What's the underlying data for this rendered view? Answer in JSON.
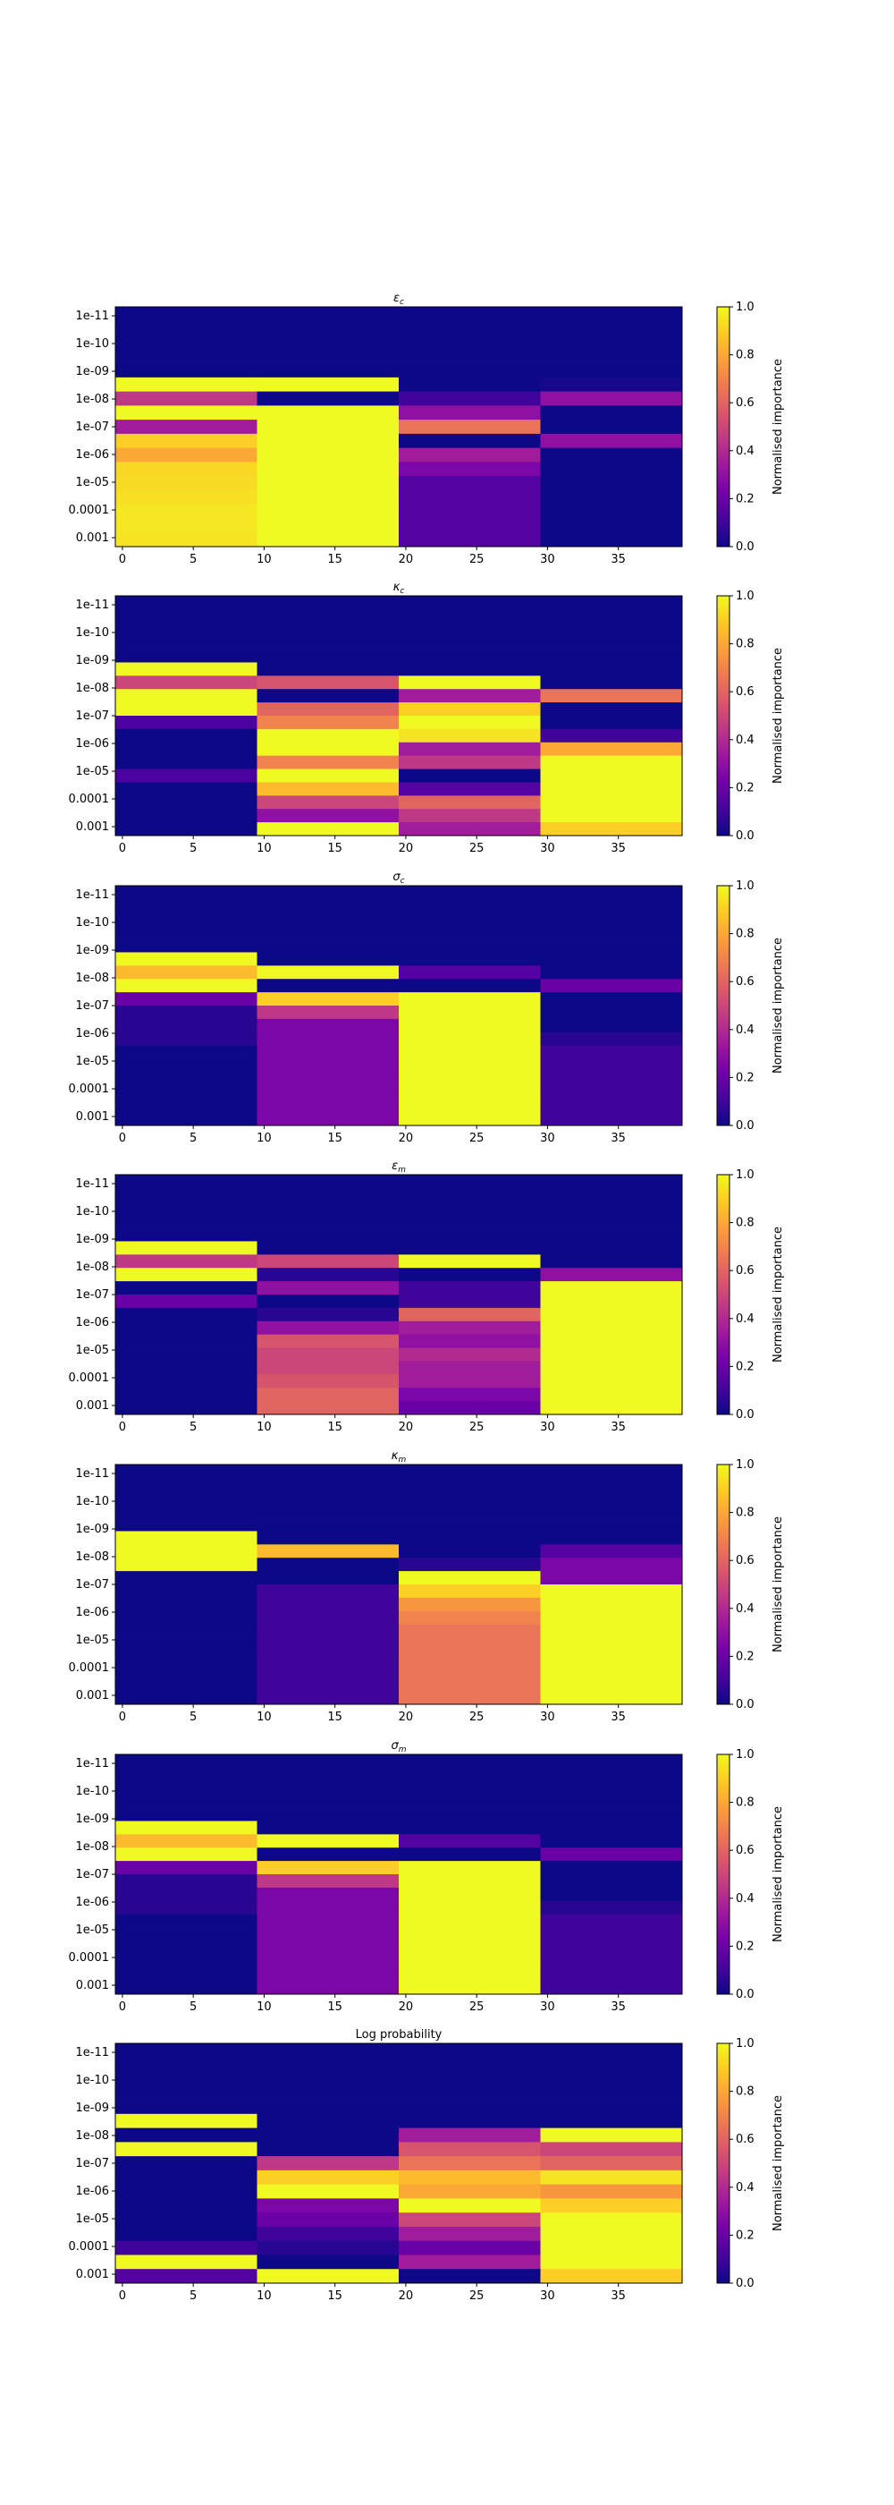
{
  "figure": {
    "colorscale": {
      "name": "plasma",
      "stops": [
        "#0d0887",
        "#46039f",
        "#7201a8",
        "#9c179e",
        "#bd3786",
        "#d8576b",
        "#ed7953",
        "#fb9f3a",
        "#fdca26",
        "#f0f921"
      ]
    },
    "colorbar_label": "Normalised importance",
    "colorbar_ticks": [
      "0.0",
      "0.2",
      "0.4",
      "0.6",
      "0.8",
      "1.0"
    ]
  },
  "chart_data": [
    {
      "type": "heatmap",
      "title": "εc",
      "title_main": "ε",
      "title_sub": "c",
      "x_ticks": [
        "0",
        "5",
        "10",
        "15",
        "20",
        "25",
        "30",
        "35"
      ],
      "xlim": [
        -0.5,
        39.5
      ],
      "y_tick_labels": [
        "1e-11",
        "1e-10",
        "1e-09",
        "1e-08",
        "1e-07",
        "1e-06",
        "1e-05",
        "0.0001",
        "0.001"
      ],
      "colorbar_range": [
        0,
        1
      ],
      "col_groups": [
        [
          0,
          9
        ],
        [
          10,
          19
        ],
        [
          20,
          29
        ],
        [
          30,
          39
        ]
      ],
      "values": [
        [
          0,
          0,
          0,
          0
        ],
        [
          0,
          0,
          0,
          0
        ],
        [
          0,
          0,
          0,
          0
        ],
        [
          0,
          0,
          0,
          0
        ],
        [
          0,
          0,
          0,
          0
        ],
        [
          1.0,
          1.0,
          0,
          0.02
        ],
        [
          0.45,
          0,
          0.1,
          0.3
        ],
        [
          1.0,
          1.0,
          0.3,
          0
        ],
        [
          0.35,
          1.0,
          0.65,
          0
        ],
        [
          0.9,
          1.0,
          0,
          0.3
        ],
        [
          0.8,
          1.0,
          0.35,
          0
        ],
        [
          0.92,
          1.0,
          0.25,
          0
        ],
        [
          0.93,
          1.0,
          0.15,
          0
        ],
        [
          0.94,
          1.0,
          0.15,
          0
        ],
        [
          0.96,
          1.0,
          0.15,
          0
        ],
        [
          0.96,
          1.0,
          0.15,
          0
        ],
        [
          0.95,
          1.0,
          0.15,
          0
        ]
      ]
    },
    {
      "type": "heatmap",
      "title": "κc",
      "title_main": "κ",
      "title_sub": "c",
      "x_ticks": [
        "0",
        "5",
        "10",
        "15",
        "20",
        "25",
        "30",
        "35"
      ],
      "xlim": [
        -0.5,
        39.5
      ],
      "y_tick_labels": [
        "1e-11",
        "1e-10",
        "1e-09",
        "1e-08",
        "1e-07",
        "1e-06",
        "1e-05",
        "0.0001",
        "0.001"
      ],
      "colorbar_range": [
        0,
        1
      ],
      "col_groups": [
        [
          0,
          9
        ],
        [
          10,
          19
        ],
        [
          20,
          29
        ],
        [
          30,
          39
        ]
      ],
      "values": [
        [
          0,
          0,
          0,
          0
        ],
        [
          0,
          0,
          0,
          0
        ],
        [
          0,
          0,
          0,
          0
        ],
        [
          0,
          0,
          0,
          0
        ],
        [
          0,
          0,
          0,
          0
        ],
        [
          1.0,
          0,
          0,
          0
        ],
        [
          0.5,
          0.55,
          1.0,
          0
        ],
        [
          1.0,
          0,
          0.35,
          0.65
        ],
        [
          1.0,
          0.6,
          0.9,
          0
        ],
        [
          0.12,
          0.7,
          1.0,
          0
        ],
        [
          0,
          1.0,
          0.95,
          0.1
        ],
        [
          0,
          1.0,
          0.35,
          0.8
        ],
        [
          0,
          0.7,
          0.45,
          1.0
        ],
        [
          0.12,
          1.0,
          0,
          1.0
        ],
        [
          0,
          0.85,
          0.15,
          1.0
        ],
        [
          0,
          0.5,
          0.6,
          1.0
        ],
        [
          0,
          0.3,
          0.45,
          1.0
        ],
        [
          0,
          1.0,
          0.35,
          0.9
        ]
      ]
    },
    {
      "type": "heatmap",
      "title": "σc",
      "title_main": "σ",
      "title_sub": "c",
      "x_ticks": [
        "0",
        "5",
        "10",
        "15",
        "20",
        "25",
        "30",
        "35"
      ],
      "xlim": [
        -0.5,
        39.5
      ],
      "y_tick_labels": [
        "1e-11",
        "1e-10",
        "1e-09",
        "1e-08",
        "1e-07",
        "1e-06",
        "1e-05",
        "0.0001",
        "0.001"
      ],
      "colorbar_range": [
        0,
        1
      ],
      "col_groups": [
        [
          0,
          9
        ],
        [
          10,
          19
        ],
        [
          20,
          29
        ],
        [
          30,
          39
        ]
      ],
      "values": [
        [
          0,
          0,
          0,
          0
        ],
        [
          0,
          0,
          0,
          0
        ],
        [
          0,
          0,
          0,
          0
        ],
        [
          0,
          0,
          0,
          0
        ],
        [
          0,
          0,
          0,
          0
        ],
        [
          1.0,
          0,
          0,
          0
        ],
        [
          0.85,
          1.0,
          0.15,
          0
        ],
        [
          1.0,
          0,
          0,
          0.2
        ],
        [
          0.2,
          0.9,
          1.0,
          0
        ],
        [
          0.05,
          0.45,
          1.0,
          0
        ],
        [
          0.05,
          0.25,
          1.0,
          0
        ],
        [
          0.05,
          0.25,
          1.0,
          0.05
        ],
        [
          0,
          0.25,
          1.0,
          0.1
        ],
        [
          0,
          0.25,
          1.0,
          0.1
        ],
        [
          0,
          0.25,
          1.0,
          0.1
        ],
        [
          0,
          0.25,
          1.0,
          0.1
        ],
        [
          0,
          0.25,
          1.0,
          0.1
        ],
        [
          0,
          0.25,
          1.0,
          0.1
        ]
      ]
    },
    {
      "type": "heatmap",
      "title": "εm",
      "title_main": "ε",
      "title_sub": "m",
      "x_ticks": [
        "0",
        "5",
        "10",
        "15",
        "20",
        "25",
        "30",
        "35"
      ],
      "xlim": [
        -0.5,
        39.5
      ],
      "y_tick_labels": [
        "1e-11",
        "1e-10",
        "1e-09",
        "1e-08",
        "1e-07",
        "1e-06",
        "1e-05",
        "0.0001",
        "0.001"
      ],
      "colorbar_range": [
        0,
        1
      ],
      "col_groups": [
        [
          0,
          9
        ],
        [
          10,
          19
        ],
        [
          20,
          29
        ],
        [
          30,
          39
        ]
      ],
      "values": [
        [
          0,
          0,
          0,
          0
        ],
        [
          0,
          0,
          0,
          0
        ],
        [
          0,
          0,
          0,
          0
        ],
        [
          0,
          0,
          0,
          0
        ],
        [
          0,
          0,
          0,
          0
        ],
        [
          1.0,
          0,
          0,
          0
        ],
        [
          0.45,
          0.5,
          1.0,
          0
        ],
        [
          1.0,
          0.05,
          0,
          0.3
        ],
        [
          0,
          0.3,
          0.1,
          1.0
        ],
        [
          0.2,
          0,
          0.1,
          1.0
        ],
        [
          0,
          0.05,
          0.6,
          1.0
        ],
        [
          0,
          0.3,
          0.35,
          1.0
        ],
        [
          0,
          0.55,
          0.3,
          1.0
        ],
        [
          0,
          0.5,
          0.4,
          1.0
        ],
        [
          0,
          0.5,
          0.35,
          1.0
        ],
        [
          0,
          0.55,
          0.35,
          1.0
        ],
        [
          0,
          0.6,
          0.25,
          1.0
        ],
        [
          0,
          0.6,
          0.2,
          1.0
        ]
      ]
    },
    {
      "type": "heatmap",
      "title": "κm",
      "title_main": "κ",
      "title_sub": "m",
      "x_ticks": [
        "0",
        "5",
        "10",
        "15",
        "20",
        "25",
        "30",
        "35"
      ],
      "xlim": [
        -0.5,
        39.5
      ],
      "y_tick_labels": [
        "1e-11",
        "1e-10",
        "1e-09",
        "1e-08",
        "1e-07",
        "1e-06",
        "1e-05",
        "0.0001",
        "0.001"
      ],
      "colorbar_range": [
        0,
        1
      ],
      "col_groups": [
        [
          0,
          9
        ],
        [
          10,
          19
        ],
        [
          20,
          29
        ],
        [
          30,
          39
        ]
      ],
      "values": [
        [
          0,
          0,
          0,
          0
        ],
        [
          0,
          0,
          0,
          0
        ],
        [
          0,
          0,
          0,
          0
        ],
        [
          0,
          0,
          0,
          0
        ],
        [
          0,
          0,
          0,
          0
        ],
        [
          1.0,
          0,
          0,
          0
        ],
        [
          1.0,
          0.85,
          0,
          0.15
        ],
        [
          1.0,
          0,
          0.05,
          0.25
        ],
        [
          0,
          0,
          1.0,
          0.25
        ],
        [
          0,
          0.1,
          0.9,
          1.0
        ],
        [
          0,
          0.1,
          0.75,
          1.0
        ],
        [
          0,
          0.1,
          0.7,
          1.0
        ],
        [
          0,
          0.1,
          0.65,
          1.0
        ],
        [
          0,
          0.1,
          0.65,
          1.0
        ],
        [
          0,
          0.1,
          0.65,
          1.0
        ],
        [
          0,
          0.1,
          0.65,
          1.0
        ],
        [
          0,
          0.1,
          0.65,
          1.0
        ],
        [
          0,
          0.1,
          0.65,
          1.0
        ]
      ]
    },
    {
      "type": "heatmap",
      "title": "σm",
      "title_main": "σ",
      "title_sub": "m",
      "x_ticks": [
        "0",
        "5",
        "10",
        "15",
        "20",
        "25",
        "30",
        "35"
      ],
      "xlim": [
        -0.5,
        39.5
      ],
      "y_tick_labels": [
        "1e-11",
        "1e-10",
        "1e-09",
        "1e-08",
        "1e-07",
        "1e-06",
        "1e-05",
        "0.0001",
        "0.001"
      ],
      "colorbar_range": [
        0,
        1
      ],
      "col_groups": [
        [
          0,
          9
        ],
        [
          10,
          19
        ],
        [
          20,
          29
        ],
        [
          30,
          39
        ]
      ],
      "values": [
        [
          0,
          0,
          0,
          0
        ],
        [
          0,
          0,
          0,
          0
        ],
        [
          0,
          0,
          0,
          0
        ],
        [
          0,
          0,
          0,
          0
        ],
        [
          0,
          0,
          0,
          0
        ],
        [
          1.0,
          0,
          0,
          0
        ],
        [
          0.85,
          1.0,
          0.15,
          0
        ],
        [
          1.0,
          0,
          0,
          0.2
        ],
        [
          0.2,
          0.9,
          1.0,
          0
        ],
        [
          0.05,
          0.45,
          1.0,
          0
        ],
        [
          0.05,
          0.25,
          1.0,
          0
        ],
        [
          0.05,
          0.25,
          1.0,
          0.05
        ],
        [
          0,
          0.25,
          1.0,
          0.1
        ],
        [
          0,
          0.25,
          1.0,
          0.1
        ],
        [
          0,
          0.25,
          1.0,
          0.1
        ],
        [
          0,
          0.25,
          1.0,
          0.1
        ],
        [
          0,
          0.25,
          1.0,
          0.1
        ],
        [
          0,
          0.25,
          1.0,
          0.1
        ]
      ]
    },
    {
      "type": "heatmap",
      "title": "Log probability",
      "x_ticks": [
        "0",
        "5",
        "10",
        "15",
        "20",
        "25",
        "30",
        "35"
      ],
      "xlim": [
        -0.5,
        39.5
      ],
      "y_tick_labels": [
        "1e-11",
        "1e-10",
        "1e-09",
        "1e-08",
        "1e-07",
        "1e-06",
        "1e-05",
        "0.0001",
        "0.001"
      ],
      "colorbar_range": [
        0,
        1
      ],
      "col_groups": [
        [
          0,
          9
        ],
        [
          10,
          19
        ],
        [
          20,
          29
        ],
        [
          30,
          39
        ]
      ],
      "values": [
        [
          0,
          0,
          0,
          0
        ],
        [
          0,
          0,
          0,
          0
        ],
        [
          0,
          0,
          0,
          0
        ],
        [
          0,
          0,
          0,
          0
        ],
        [
          0,
          0,
          0,
          0
        ],
        [
          1.0,
          0,
          0,
          0
        ],
        [
          0,
          0,
          0.35,
          1.0
        ],
        [
          1.0,
          0,
          0.55,
          0.5
        ],
        [
          0,
          0.45,
          0.65,
          0.6
        ],
        [
          0,
          0.9,
          0.85,
          0.95
        ],
        [
          0,
          1.0,
          0.8,
          0.75
        ],
        [
          0,
          0.25,
          1.0,
          0.9
        ],
        [
          0,
          0.2,
          0.5,
          1.0
        ],
        [
          0,
          0.1,
          0.35,
          1.0
        ],
        [
          0.1,
          0.05,
          0.2,
          1.0
        ],
        [
          1.0,
          0,
          0.35,
          1.0
        ],
        [
          0.15,
          1.0,
          0,
          0.9
        ]
      ]
    }
  ]
}
